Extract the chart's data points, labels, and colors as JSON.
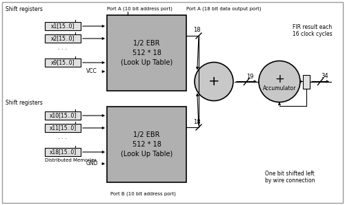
{
  "bg_color": "#ffffff",
  "box_fill": "#b0b0b0",
  "box_edge": "#000000",
  "small_box_fill": "#e0e0e0",
  "small_box_edge": "#000000",
  "circle_fill": "#c8c8c8",
  "circle_edge": "#000000",
  "ebr_top_text": [
    "1/2 EBR",
    "512 * 18",
    "(Look Up Table)"
  ],
  "ebr_bot_text": [
    "1/2 EBR",
    "512 * 18",
    "(Look Up Table)"
  ],
  "top_regs": [
    "x1[15..0]",
    "x2[15..0]",
    "x9[15..0]"
  ],
  "bot_regs": [
    "x10[15..0]",
    "x11[15..0]",
    "x18[15..0]"
  ],
  "label_shift_top": "Shift registers",
  "label_shift_bot": "Shift registers",
  "label_porta_addr": "Port A (10 bit address port)",
  "label_porta_data": "Port A (18 bit data output port)",
  "label_portb": "Port B (10 bit address port)",
  "label_vcc": "VCC",
  "label_gnd": "GND",
  "label_dist_mem": "Distributed Memories",
  "label_18_top": "18",
  "label_18_bot": "18",
  "label_19": "19",
  "label_34": "34",
  "label_accum": "Accumulator",
  "label_plus_big": "+",
  "label_plus_accum": "+",
  "label_fir": "FIR result each\n16 clock cycles",
  "label_onebit": "One bit shifted left\nby wire connection"
}
